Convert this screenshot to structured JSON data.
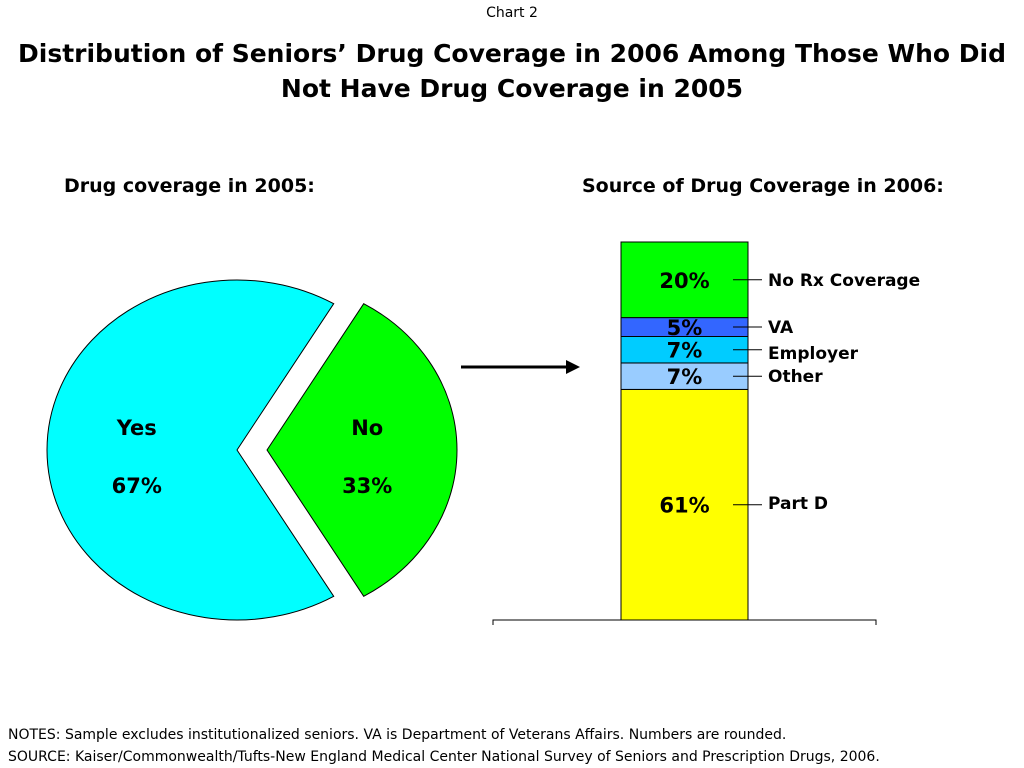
{
  "chart_label": "Chart 2",
  "title_lines": [
    "Distribution of Seniors’ Drug Coverage in 2006 Among Those Who Did",
    "Not Have Drug Coverage in 2005"
  ],
  "chart_data": [
    {
      "type": "pie",
      "title": "Drug coverage in 2005:",
      "slices": [
        {
          "label": "Yes",
          "value": 67,
          "value_label": "67%",
          "color": "#00FFFF",
          "exploded": false
        },
        {
          "label": "No",
          "value": 33,
          "value_label": "33%",
          "color": "#00FF00",
          "exploded": true
        }
      ]
    },
    {
      "type": "bar",
      "stacked": true,
      "title": "Source of Drug Coverage in 2006:",
      "segments": [
        {
          "name": "Part D",
          "value": 61,
          "value_label": "61%",
          "color": "#FFFF00"
        },
        {
          "name": "Other",
          "value": 7,
          "value_label": "7%",
          "color": "#99CCFF"
        },
        {
          "name": "Employer",
          "value": 7,
          "value_label": "7%",
          "color": "#00CCFF"
        },
        {
          "name": "VA",
          "value": 5,
          "value_label": "5%",
          "color": "#3366FF"
        },
        {
          "name": "No Rx Coverage",
          "value": 20,
          "value_label": "20%",
          "color": "#00FF00"
        }
      ]
    }
  ],
  "notes": [
    "NOTES: Sample excludes institutionalized seniors.  VA is Department of Veterans Affairs. Numbers are rounded.",
    "SOURCE: Kaiser/Commonwealth/Tufts-New England Medical Center National Survey of Seniors and Prescription Drugs, 2006."
  ]
}
